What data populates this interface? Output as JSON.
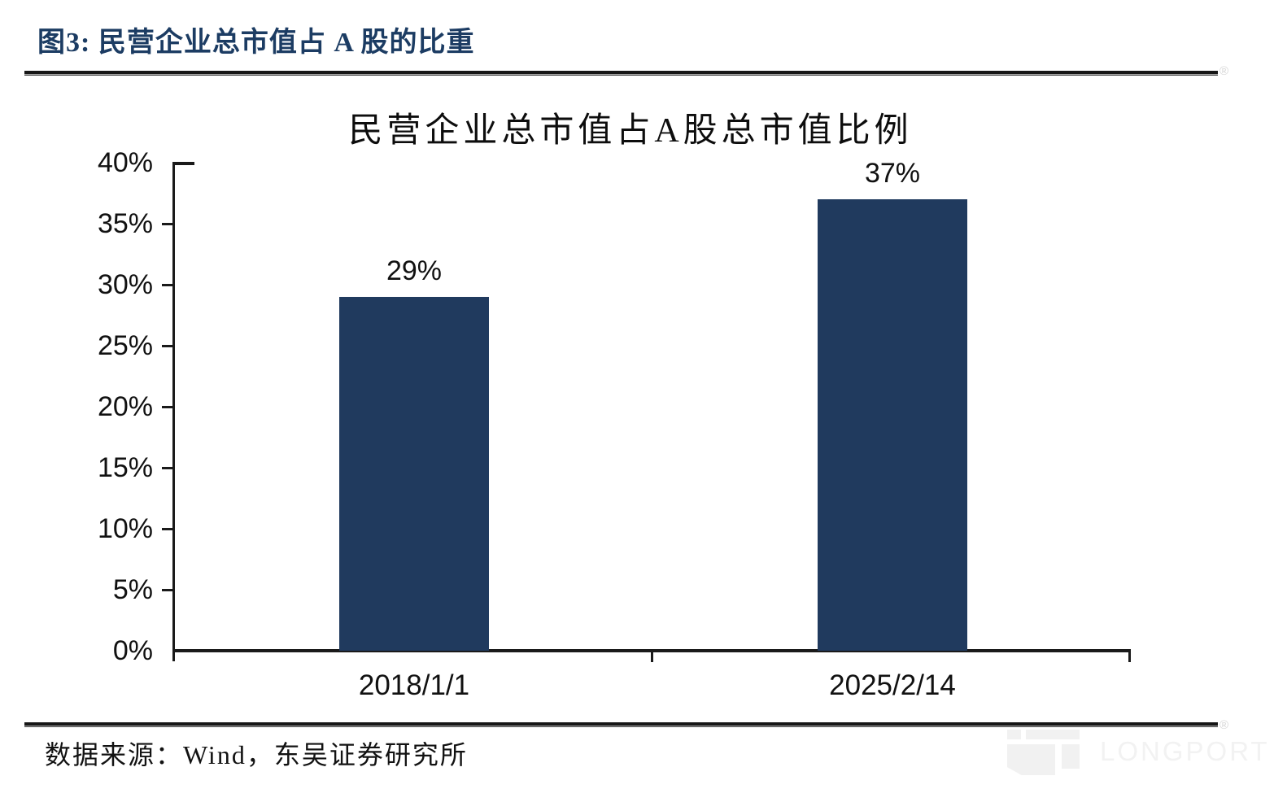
{
  "figure_header": {
    "title": "图3: 民营企业总市值占 A 股的比重"
  },
  "chart_data": {
    "type": "bar",
    "title": "民营企业总市值占A股总市值比例",
    "categories": [
      "2018/1/1",
      "2025/2/14"
    ],
    "values": [
      29,
      37
    ],
    "value_labels": [
      "29%",
      "37%"
    ],
    "xlabel": "",
    "ylabel": "",
    "ylim": [
      0,
      40
    ],
    "y_tick_step": 5,
    "y_tick_labels": [
      "0%",
      "5%",
      "10%",
      "15%",
      "20%",
      "25%",
      "30%",
      "35%",
      "40%"
    ],
    "grid": false,
    "legend": "none",
    "bar_color": "#203a5e"
  },
  "footer": {
    "source": "数据来源：Wind，东吴证券研究所"
  },
  "watermark": {
    "brand": "LONGPORT",
    "registered": "®",
    "icon": "longport-logo-icon",
    "color": "#f2f2f2"
  },
  "colors": {
    "header_title": "#1c3c63",
    "bar": "#203a5e",
    "axis": "#1a1a1a",
    "text": "#111111",
    "rule": "#161616"
  }
}
